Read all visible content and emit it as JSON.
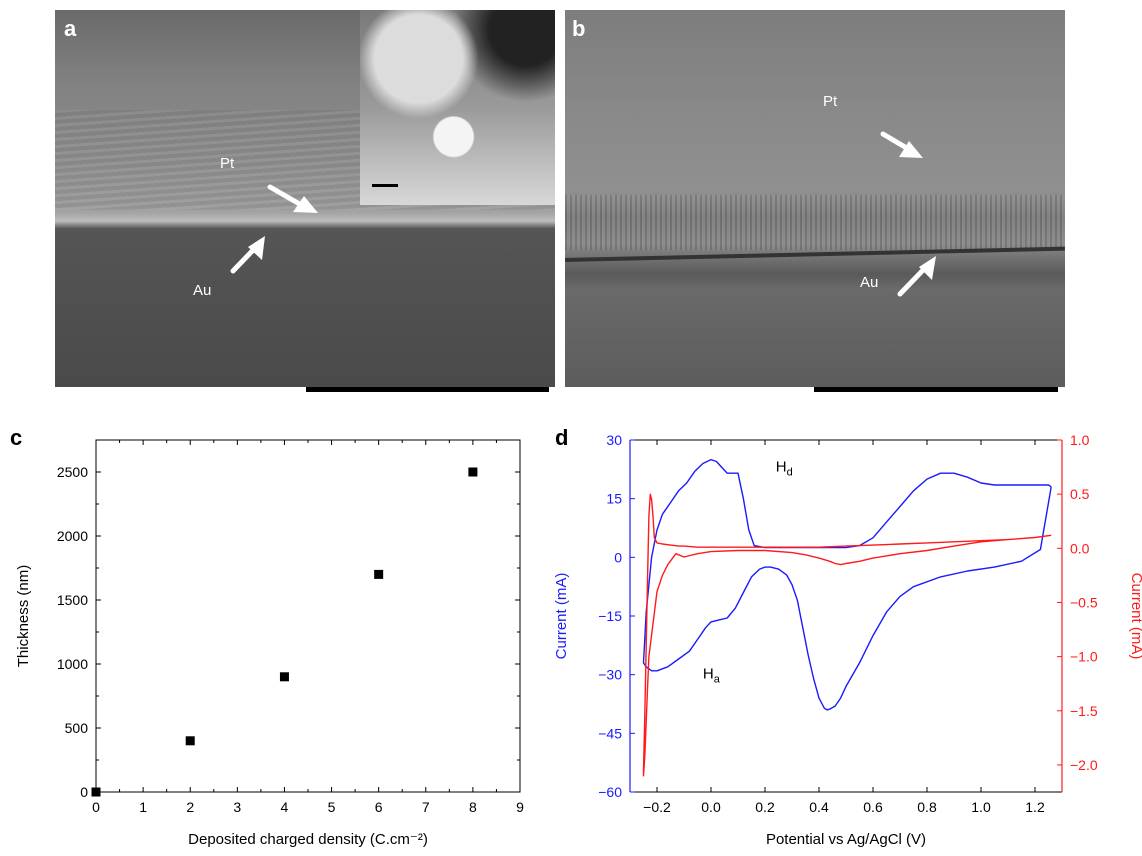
{
  "panels": {
    "a": {
      "letter": "a",
      "pt_label": "Pt",
      "au_label": "Au"
    },
    "b": {
      "letter": "b",
      "pt_label": "Pt",
      "au_label": "Au"
    },
    "c": {
      "letter": "c"
    },
    "d": {
      "letter": "d"
    }
  },
  "chart_data": [
    {
      "panel": "c",
      "type": "scatter",
      "xlabel": "Deposited charged density (C.cm⁻²)",
      "ylabel": "Thickness (nm)",
      "xlim": [
        0,
        9
      ],
      "ylim": [
        0,
        2750
      ],
      "xticks": [
        "0",
        "1",
        "2",
        "3",
        "4",
        "5",
        "6",
        "7",
        "8",
        "9"
      ],
      "yticks": [
        "0",
        "500",
        "1000",
        "1500",
        "2000",
        "2500"
      ],
      "x": [
        0,
        2,
        4,
        6,
        8
      ],
      "y": [
        0,
        400,
        900,
        1700,
        2500
      ],
      "marker": "square",
      "color": "#000000"
    },
    {
      "panel": "d",
      "type": "line",
      "xlabel": "Potential vs Ag/AgCl (V)",
      "ylabel_left": "Current (mA)",
      "ylabel_right": "Current (mA)",
      "xlim": [
        -0.3,
        1.3
      ],
      "ylim_left": [
        -60,
        30
      ],
      "ylim_right": [
        -2.25,
        1.0
      ],
      "xticks": [
        "−0.2",
        "0.0",
        "0.2",
        "0.4",
        "0.6",
        "0.8",
        "1.0",
        "1.2"
      ],
      "yticks_left": [
        "30",
        "15",
        "0",
        "−15",
        "−30",
        "−45",
        "−60"
      ],
      "yticks_right": [
        "1.0",
        "0.5",
        "0.0",
        "−0.5",
        "−1.0",
        "−1.5",
        "−2.0"
      ],
      "annotations": [
        {
          "text": "H",
          "sub": "d",
          "x": 0.24,
          "y": 22
        },
        {
          "text": "H",
          "sub": "a",
          "x": -0.03,
          "y": -31
        }
      ],
      "series": [
        {
          "axis": "left",
          "color": "#1a1aff",
          "x": [
            1.26,
            1.25,
            1.22,
            1.15,
            1.05,
            0.95,
            0.85,
            0.75,
            0.7,
            0.65,
            0.6,
            0.55,
            0.5,
            0.48,
            0.46,
            0.44,
            0.43,
            0.42,
            0.4,
            0.38,
            0.36,
            0.34,
            0.32,
            0.3,
            0.28,
            0.25,
            0.22,
            0.2,
            0.18,
            0.15,
            0.12,
            0.09,
            0.06,
            0.03,
            0.0,
            -0.02,
            -0.05,
            -0.08,
            -0.12,
            -0.16,
            -0.2,
            -0.22,
            -0.24,
            -0.25,
            -0.24,
            -0.22,
            -0.2,
            -0.18,
            -0.15,
            -0.12,
            -0.09,
            -0.06,
            -0.03,
            0.0,
            0.02,
            0.04,
            0.06,
            0.08,
            0.1,
            0.12,
            0.14,
            0.16,
            0.2,
            0.3,
            0.4,
            0.5,
            0.55,
            0.6,
            0.65,
            0.7,
            0.75,
            0.8,
            0.85,
            0.9,
            0.95,
            1.0,
            1.05,
            1.1,
            1.15,
            1.2,
            1.25,
            1.26
          ],
          "y": [
            18,
            14,
            2,
            -1,
            -2.5,
            -3.5,
            -5,
            -7.5,
            -10,
            -14,
            -20,
            -27,
            -33,
            -36,
            -38,
            -38.8,
            -39,
            -38.6,
            -36,
            -31,
            -25,
            -18,
            -11,
            -7,
            -4.5,
            -3,
            -2.5,
            -2.5,
            -3,
            -5,
            -9,
            -13,
            -15.5,
            -16,
            -16.5,
            -18,
            -21,
            -24,
            -26,
            -28,
            -29,
            -29,
            -28,
            -27,
            -14,
            0,
            7,
            11,
            14,
            17,
            19,
            22,
            24,
            25,
            24.5,
            23,
            21.5,
            21.5,
            21.5,
            15,
            7,
            3,
            2.5,
            2.5,
            2.5,
            2.5,
            3,
            5,
            9,
            13,
            17,
            20,
            21.5,
            21.5,
            20.5,
            19,
            18.5,
            18.5,
            18.5,
            18.5,
            18.5,
            18
          ]
        },
        {
          "axis": "right",
          "color": "#ff1a1a",
          "x": [
            1.26,
            1.2,
            1.1,
            1.0,
            0.9,
            0.8,
            0.7,
            0.6,
            0.55,
            0.5,
            0.48,
            0.46,
            0.44,
            0.4,
            0.35,
            0.3,
            0.2,
            0.1,
            0.0,
            -0.05,
            -0.1,
            -0.13,
            -0.16,
            -0.18,
            -0.2,
            -0.21,
            -0.22,
            -0.23,
            -0.235,
            -0.24,
            -0.245,
            -0.25,
            -0.25,
            -0.245,
            -0.24,
            -0.235,
            -0.23,
            -0.225,
            -0.22,
            -0.215,
            -0.21,
            -0.2,
            -0.18,
            -0.15,
            -0.12,
            -0.1,
            -0.05,
            0.0,
            0.1,
            0.2,
            0.3,
            0.4,
            0.5,
            0.6,
            0.7,
            0.8,
            0.9,
            1.0,
            1.1,
            1.2,
            1.26
          ],
          "y": [
            0.12,
            0.1,
            0.08,
            0.06,
            0.02,
            -0.02,
            -0.05,
            -0.09,
            -0.12,
            -0.14,
            -0.15,
            -0.14,
            -0.12,
            -0.09,
            -0.06,
            -0.04,
            -0.02,
            -0.02,
            -0.03,
            -0.05,
            -0.08,
            -0.05,
            -0.15,
            -0.25,
            -0.4,
            -0.6,
            -0.8,
            -1.0,
            -1.3,
            -1.6,
            -1.9,
            -2.1,
            -2.05,
            -1.5,
            -0.9,
            -0.3,
            0.3,
            0.5,
            0.45,
            0.3,
            0.1,
            0.05,
            0.04,
            0.03,
            0.02,
            0.02,
            0.01,
            0.01,
            0.01,
            0.01,
            0.01,
            0.01,
            0.02,
            0.03,
            0.04,
            0.05,
            0.06,
            0.07,
            0.08,
            0.1,
            0.12
          ]
        }
      ]
    }
  ]
}
